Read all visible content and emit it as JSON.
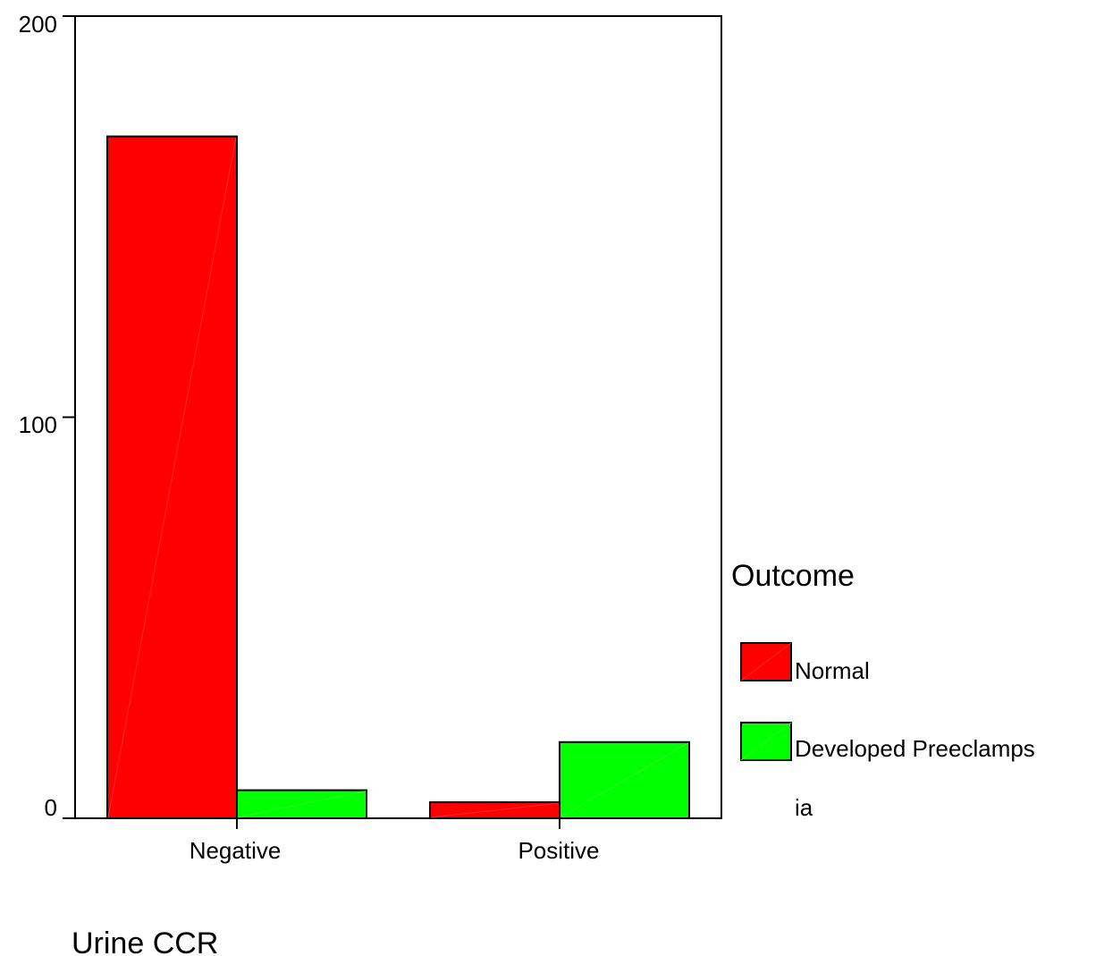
{
  "chart_data": {
    "type": "bar",
    "categories": [
      "Negative",
      "Positive"
    ],
    "series": [
      {
        "name": "Normal",
        "values": [
          170,
          4
        ],
        "color": "#ff0000"
      },
      {
        "name": "Developed Preeclampsia",
        "values": [
          7,
          19
        ],
        "color": "#00ff00"
      }
    ],
    "title": "",
    "xlabel": "Urine CCR",
    "ylabel": "",
    "ylim": [
      0,
      200
    ],
    "yticks": [
      "0",
      "100",
      "200"
    ],
    "legend": {
      "title": "Outcome",
      "placement": "right",
      "entries": [
        {
          "lines": [
            "Normal"
          ]
        },
        {
          "lines": [
            "Developed Preeclamps",
            "ia"
          ]
        }
      ]
    },
    "grid": false
  }
}
